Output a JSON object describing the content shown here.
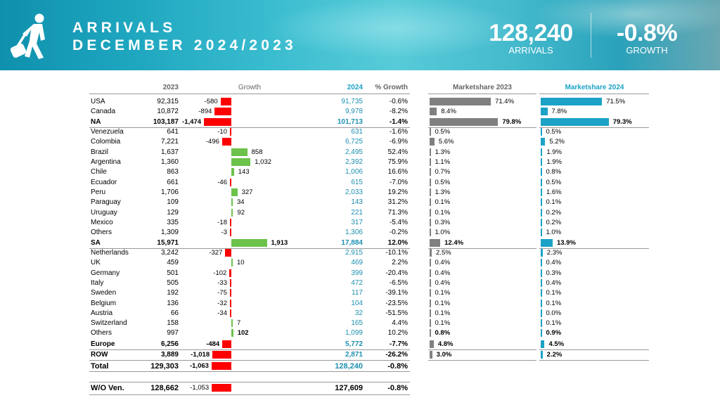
{
  "header": {
    "title_line1": "ARRIVALS",
    "title_line2": "DECEMBER 2024/2023",
    "kpi_arrivals_value": "128,240",
    "kpi_arrivals_label": "ARRIVALS",
    "kpi_growth_value": "-0.8%",
    "kpi_growth_label": "GROWTH"
  },
  "columns": {
    "y2023": "2023",
    "growth": "Growth",
    "y2024": "2024",
    "pct_growth": "% Growth",
    "ms2023": "Marketshare 2023",
    "ms2024": "Marketshare 2024"
  },
  "colors": {
    "positive": "#6cc24a",
    "negative": "#ff0000",
    "ms2023": "#808080",
    "ms2024": "#1ba2c6"
  },
  "rows": [
    {
      "name": "USA",
      "v2023": "92,315",
      "growth": "-580",
      "growth_value": -580,
      "v2024": "91,735",
      "pct": "-0.6%",
      "ms2023": "71.4%",
      "ms2023_value": 71.4,
      "ms2024": "71.5%",
      "ms2024_value": 71.5,
      "bold": false
    },
    {
      "name": "Canada",
      "v2023": "10,872",
      "growth": "-894",
      "growth_value": -894,
      "v2024": "9,978",
      "pct": "-8.2%",
      "ms2023": "8.4%",
      "ms2023_value": 8.4,
      "ms2024": "7.8%",
      "ms2024_value": 7.8,
      "bold": false
    },
    {
      "name": "NA",
      "v2023": "103,187",
      "growth": "-1,474",
      "growth_value": -1474,
      "v2024": "101,713",
      "pct": "-1.4%",
      "ms2023": "79.8%",
      "ms2023_value": 79.8,
      "ms2024": "79.3%",
      "ms2024_value": 79.3,
      "bold": true,
      "line_after": true
    },
    {
      "name": "Venezuela",
      "v2023": "641",
      "growth": "-10",
      "growth_value": -10,
      "v2024": "631",
      "pct": "-1.6%",
      "ms2023": "0.5%",
      "ms2023_value": 0.5,
      "ms2024": "0.5%",
      "ms2024_value": 0.5,
      "bold": false
    },
    {
      "name": "Colombia",
      "v2023": "7,221",
      "growth": "-496",
      "growth_value": -496,
      "v2024": "6,725",
      "pct": "-6.9%",
      "ms2023": "5.6%",
      "ms2023_value": 5.6,
      "ms2024": "5.2%",
      "ms2024_value": 5.2,
      "bold": false
    },
    {
      "name": "Brazil",
      "v2023": "1,637",
      "growth": "858",
      "growth_value": 858,
      "v2024": "2,495",
      "pct": "52.4%",
      "ms2023": "1.3%",
      "ms2023_value": 1.3,
      "ms2024": "1.9%",
      "ms2024_value": 1.9,
      "bold": false
    },
    {
      "name": "Argentina",
      "v2023": "1,360",
      "growth": "1,032",
      "growth_value": 1032,
      "v2024": "2,392",
      "pct": "75.9%",
      "ms2023": "1.1%",
      "ms2023_value": 1.1,
      "ms2024": "1.9%",
      "ms2024_value": 1.9,
      "bold": false
    },
    {
      "name": "Chile",
      "v2023": "863",
      "growth": "143",
      "growth_value": 143,
      "v2024": "1,006",
      "pct": "16.6%",
      "ms2023": "0.7%",
      "ms2023_value": 0.7,
      "ms2024": "0.8%",
      "ms2024_value": 0.8,
      "bold": false
    },
    {
      "name": "Ecuador",
      "v2023": "661",
      "growth": "-46",
      "growth_value": -46,
      "v2024": "615",
      "pct": "-7.0%",
      "ms2023": "0.5%",
      "ms2023_value": 0.5,
      "ms2024": "0.5%",
      "ms2024_value": 0.5,
      "bold": false
    },
    {
      "name": "Peru",
      "v2023": "1,706",
      "growth": "327",
      "growth_value": 327,
      "v2024": "2,033",
      "pct": "19.2%",
      "ms2023": "1.3%",
      "ms2023_value": 1.3,
      "ms2024": "1.6%",
      "ms2024_value": 1.6,
      "bold": false
    },
    {
      "name": "Paraguay",
      "v2023": "109",
      "growth": "34",
      "growth_value": 34,
      "v2024": "143",
      "pct": "31.2%",
      "ms2023": "0.1%",
      "ms2023_value": 0.1,
      "ms2024": "0.1%",
      "ms2024_value": 0.1,
      "bold": false
    },
    {
      "name": "Uruguay",
      "v2023": "129",
      "growth": "92",
      "growth_value": 92,
      "v2024": "221",
      "pct": "71.3%",
      "ms2023": "0.1%",
      "ms2023_value": 0.1,
      "ms2024": "0.2%",
      "ms2024_value": 0.2,
      "bold": false
    },
    {
      "name": "Mexico",
      "v2023": "335",
      "growth": "-18",
      "growth_value": -18,
      "v2024": "317",
      "pct": "-5.4%",
      "ms2023": "0.3%",
      "ms2023_value": 0.3,
      "ms2024": "0.2%",
      "ms2024_value": 0.2,
      "bold": false
    },
    {
      "name": "Others",
      "v2023": "1,309",
      "growth": "-3",
      "growth_value": -3,
      "v2024": "1,306",
      "pct": "-0.2%",
      "ms2023": "1.0%",
      "ms2023_value": 1.0,
      "ms2024": "1.0%",
      "ms2024_value": 1.0,
      "bold": false
    },
    {
      "name": "SA",
      "v2023": "15,971",
      "growth": "1,913",
      "growth_value": 1913,
      "v2024": "17,884",
      "pct": "12.0%",
      "ms2023": "12.4%",
      "ms2023_value": 12.4,
      "ms2024": "13.9%",
      "ms2024_value": 13.9,
      "bold": true,
      "line_after": true
    },
    {
      "name": "Netherlands",
      "v2023": "3,242",
      "growth": "-327",
      "growth_value": -327,
      "v2024": "2,915",
      "pct": "-10.1%",
      "ms2023": "2.5%",
      "ms2023_value": 2.5,
      "ms2024": "2.3%",
      "ms2024_value": 2.3,
      "bold": false
    },
    {
      "name": "UK",
      "v2023": "459",
      "growth": "10",
      "growth_value": 10,
      "v2024": "469",
      "pct": "2.2%",
      "ms2023": "0.4%",
      "ms2023_value": 0.4,
      "ms2024": "0.4%",
      "ms2024_value": 0.4,
      "bold": false
    },
    {
      "name": "Germany",
      "v2023": "501",
      "growth": "-102",
      "growth_value": -102,
      "v2024": "399",
      "pct": "-20.4%",
      "ms2023": "0.4%",
      "ms2023_value": 0.4,
      "ms2024": "0.3%",
      "ms2024_value": 0.3,
      "bold": false
    },
    {
      "name": "Italy",
      "v2023": "505",
      "growth": "-33",
      "growth_value": -33,
      "v2024": "472",
      "pct": "-6.5%",
      "ms2023": "0.4%",
      "ms2023_value": 0.4,
      "ms2024": "0.4%",
      "ms2024_value": 0.4,
      "bold": false
    },
    {
      "name": "Sweden",
      "v2023": "192",
      "growth": "-75",
      "growth_value": -75,
      "v2024": "117",
      "pct": "-39.1%",
      "ms2023": "0.1%",
      "ms2023_value": 0.1,
      "ms2024": "0.1%",
      "ms2024_value": 0.1,
      "bold": false
    },
    {
      "name": "Belgium",
      "v2023": "136",
      "growth": "-32",
      "growth_value": -32,
      "v2024": "104",
      "pct": "-23.5%",
      "ms2023": "0.1%",
      "ms2023_value": 0.1,
      "ms2024": "0.1%",
      "ms2024_value": 0.1,
      "bold": false
    },
    {
      "name": "Austria",
      "v2023": "66",
      "growth": "-34",
      "growth_value": -34,
      "v2024": "32",
      "pct": "-51.5%",
      "ms2023": "0.1%",
      "ms2023_value": 0.1,
      "ms2024": "0.0%",
      "ms2024_value": 0.0,
      "bold": false
    },
    {
      "name": "Switzerland",
      "v2023": "158",
      "growth": "7",
      "growth_value": 7,
      "v2024": "165",
      "pct": "4.4%",
      "ms2023": "0.1%",
      "ms2023_value": 0.1,
      "ms2024": "0.1%",
      "ms2024_value": 0.1,
      "bold": false
    },
    {
      "name": "Others",
      "v2023": "997",
      "growth": "102",
      "growth_value": 102,
      "v2024": "1,099",
      "pct": "10.2%",
      "ms2023": "0.8%",
      "ms2023_value": 0.8,
      "ms2024": "0.9%",
      "ms2024_value": 0.9,
      "bold": false,
      "bold_labels": true
    },
    {
      "name": "Europe",
      "v2023": "6,256",
      "growth": "-484",
      "growth_value": -484,
      "v2024": "5,772",
      "pct": "-7.7%",
      "ms2023": "4.8%",
      "ms2023_value": 4.8,
      "ms2024": "4.5%",
      "ms2024_value": 4.5,
      "bold": true,
      "line_after": true
    },
    {
      "name": "ROW",
      "v2023": "3,889",
      "growth": "-1,018",
      "growth_value": -1018,
      "v2024": "2,871",
      "pct": "-26.2%",
      "ms2023": "3.0%",
      "ms2023_value": 3.0,
      "ms2024": "2.2%",
      "ms2024_value": 2.2,
      "bold": true,
      "line_after": true
    },
    {
      "name": "Total",
      "v2023": "129,303",
      "growth": "-1,063",
      "growth_value": -1063,
      "v2024": "128,240",
      "pct": "-0.8%",
      "bold": true,
      "big": true
    }
  ],
  "wo_ven": {
    "name": "W/O Ven.",
    "v2023": "128,662",
    "growth": "-1,053",
    "growth_value": -1053,
    "v2024": "127,609",
    "pct": "-0.8%"
  }
}
